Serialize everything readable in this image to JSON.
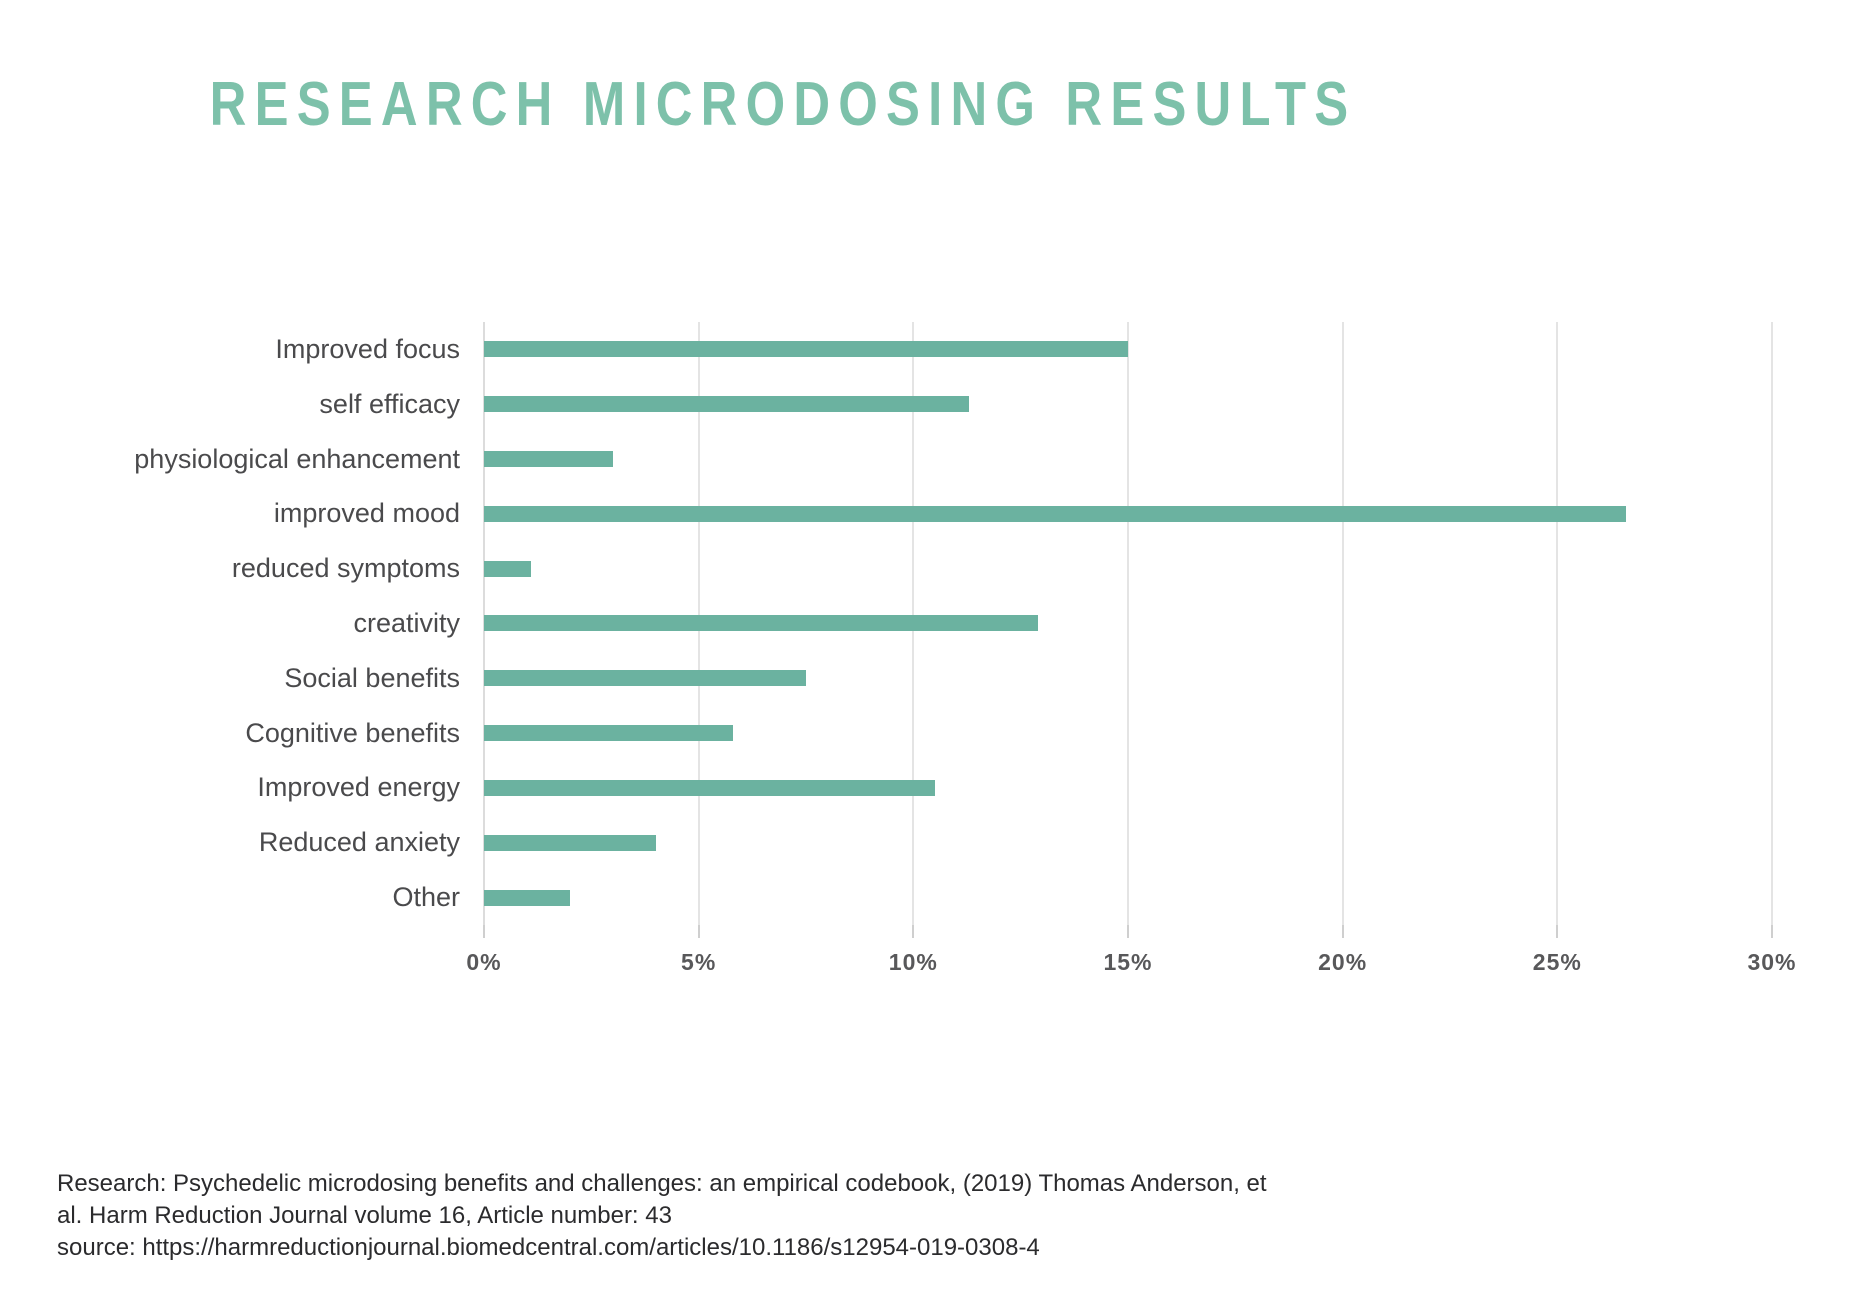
{
  "page": {
    "title": "RESEARCH MICRODOSING RESULTS"
  },
  "chart_data": {
    "type": "bar",
    "orientation": "horizontal",
    "title": "RESEARCH MICRODOSING RESULTS",
    "categories": [
      "Improved focus",
      "self efficacy",
      "physiological enhancement",
      "improved mood",
      "reduced symptoms",
      "creativity",
      "Social benefits",
      "Cognitive benefits",
      "Improved energy",
      "Reduced anxiety",
      "Other"
    ],
    "values": [
      15.0,
      11.3,
      3.0,
      26.6,
      1.1,
      12.9,
      7.5,
      5.8,
      10.5,
      4.0,
      2.0
    ],
    "unit": "%",
    "xlabel": "",
    "ylabel": "",
    "xlim": [
      0,
      30
    ],
    "x_tick_values": [
      0,
      5,
      10,
      15,
      20,
      25,
      30
    ],
    "x_tick_labels": [
      "0%",
      "5%",
      "10%",
      "15%",
      "20%",
      "25%",
      "30%"
    ],
    "grid": "vertical",
    "legend_position": "none",
    "bar_color": "#6bb2a0"
  },
  "footer": {
    "lines": [
      "Research: Psychedelic microdosing benefits and challenges: an empirical codebook, (2019) Thomas Anderson, et",
      "al. Harm Reduction Journal volume 16, Article number: 43",
      "source: https://harmreductionjournal.biomedcentral.com/articles/10.1186/s12954-019-0308-4"
    ]
  },
  "colors": {
    "title_green": "#7dc1aa",
    "bar_green": "#6bb2a0",
    "label_gray": "#4a4a4c",
    "tick_gray": "#58585a",
    "grid_gray": "#e4e4e4",
    "footer_text": "#2b2b2d"
  }
}
